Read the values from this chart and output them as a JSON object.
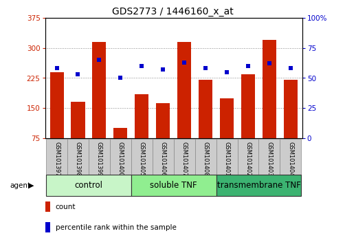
{
  "title": "GDS2773 / 1446160_x_at",
  "samples": [
    "GSM101397",
    "GSM101398",
    "GSM101399",
    "GSM101400",
    "GSM101405",
    "GSM101406",
    "GSM101407",
    "GSM101408",
    "GSM101401",
    "GSM101402",
    "GSM101403",
    "GSM101404"
  ],
  "counts": [
    240,
    165,
    315,
    100,
    185,
    163,
    315,
    220,
    175,
    235,
    320,
    220
  ],
  "percentiles": [
    58,
    53,
    65,
    50,
    60,
    57,
    63,
    58,
    55,
    60,
    62,
    58
  ],
  "groups": [
    {
      "label": "control",
      "start": 0,
      "end": 4,
      "color": "#c8f5c8"
    },
    {
      "label": "soluble TNF",
      "start": 4,
      "end": 8,
      "color": "#90ee90"
    },
    {
      "label": "transmembrane TNF",
      "start": 8,
      "end": 12,
      "color": "#3cb371"
    }
  ],
  "bar_color": "#cc2200",
  "dot_color": "#0000cc",
  "ylim_left": [
    75,
    375
  ],
  "ylim_right": [
    0,
    100
  ],
  "yticks_left": [
    75,
    150,
    225,
    300,
    375
  ],
  "yticks_right": [
    0,
    25,
    50,
    75,
    100
  ],
  "left_color": "#cc2200",
  "right_color": "#0000cc",
  "grid_color": "#888888",
  "tick_label_bg": "#cccccc",
  "legend_count": "count",
  "legend_pct": "percentile rank within the sample",
  "title_fontsize": 10,
  "bar_fontsize": 6,
  "group_fontsize": 8.5,
  "legend_fontsize": 7.5
}
